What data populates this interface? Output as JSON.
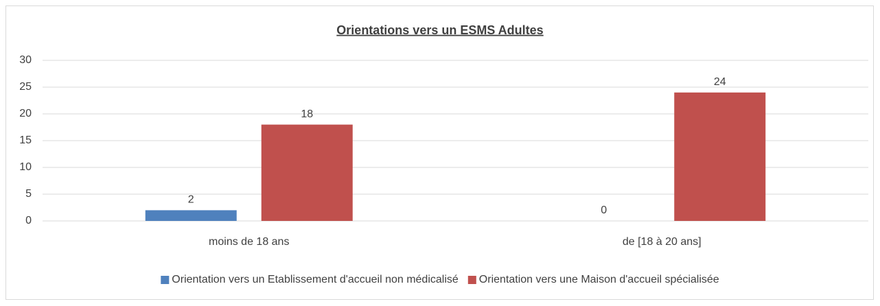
{
  "chart_data": {
    "type": "bar",
    "title": "Orientations vers un ESMS Adultes",
    "categories": [
      "moins de 18 ans",
      "de [18 à 20 ans]"
    ],
    "series": [
      {
        "name": "Orientation vers un Etablissement d'accueil non médicalisé",
        "color": "#4f81bd",
        "values": [
          2,
          0
        ]
      },
      {
        "name": "Orientation vers une Maison d'accueil spécialisée",
        "color": "#c0504d",
        "values": [
          18,
          24
        ]
      }
    ],
    "ylim": [
      0,
      30
    ],
    "yticks": [
      0,
      5,
      10,
      15,
      20,
      25,
      30
    ],
    "grid": true,
    "legend": "bottom"
  }
}
